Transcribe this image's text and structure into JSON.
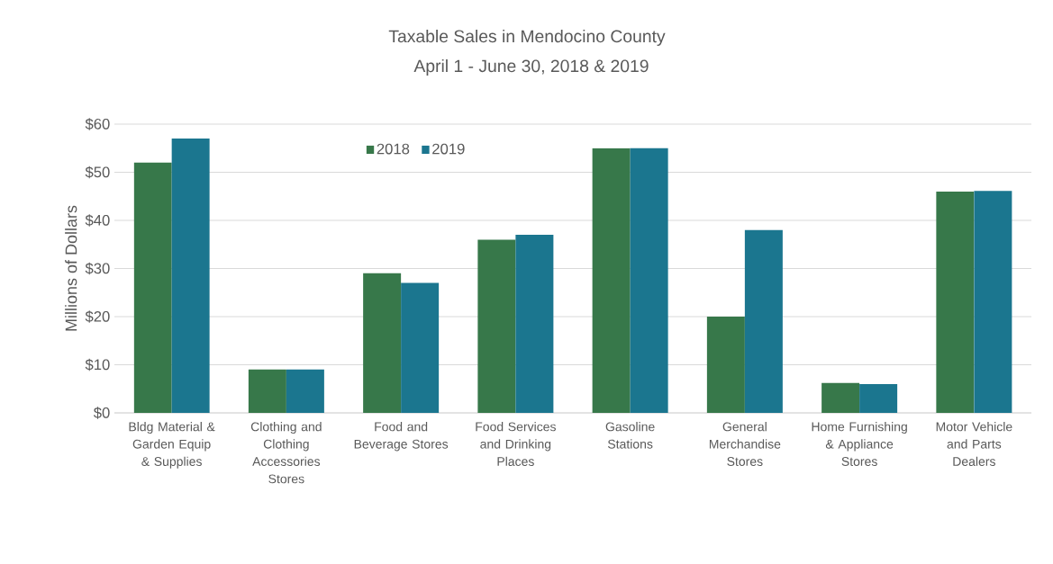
{
  "chart_data": {
    "type": "bar",
    "title": "Taxable Sales in Mendocino County",
    "subtitle": "April 1 - June 30, 2018 & 2019",
    "ylabel": "Millions of Dollars",
    "categories": [
      "Bldg Material & Garden Equip & Supplies",
      "Clothing and Clothing Accessories Stores",
      "Food and Beverage Stores",
      "Food Services and Drinking Places",
      "Gasoline Stations",
      "General Merchandise Stores",
      "Home Furnishing & Appliance Stores",
      "Motor Vehicle and Parts Dealers"
    ],
    "series": [
      {
        "name": "2018",
        "color": "#37784a",
        "values": [
          52,
          9,
          29,
          36,
          55,
          20,
          6.2,
          46
        ]
      },
      {
        "name": "2019",
        "color": "#1b768f",
        "values": [
          57,
          9,
          27,
          37,
          55,
          38,
          6,
          46.1
        ]
      }
    ],
    "ylim": [
      0,
      60
    ],
    "yticks": [
      {
        "value": 0,
        "label": "$0"
      },
      {
        "value": 10,
        "label": "$10"
      },
      {
        "value": 20,
        "label": "$20"
      },
      {
        "value": 30,
        "label": "$30"
      },
      {
        "value": 40,
        "label": "$40"
      },
      {
        "value": 50,
        "label": "$50"
      },
      {
        "value": 60,
        "label": "$60"
      }
    ],
    "grid": "y",
    "legend": "top"
  }
}
